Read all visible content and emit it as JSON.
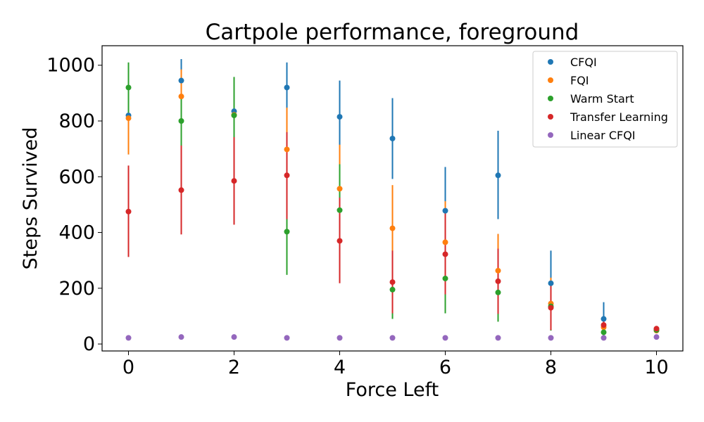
{
  "chart_data": {
    "type": "scatter",
    "title": "Cartpole performance, foreground",
    "xlabel": "Force Left",
    "ylabel": "Steps Survived",
    "xlim": [
      -0.5,
      10.5
    ],
    "ylim": [
      -25,
      1070
    ],
    "xticks": [
      0,
      2,
      4,
      6,
      8,
      10
    ],
    "yticks": [
      0,
      200,
      400,
      600,
      800,
      1000
    ],
    "grid": false,
    "legend_position": "top-right",
    "x": [
      0,
      1,
      2,
      3,
      4,
      5,
      6,
      7,
      8,
      9,
      10
    ],
    "series": [
      {
        "name": "CFQI",
        "color": "#1f77b4",
        "values": [
          820,
          945,
          835,
          920,
          815,
          737,
          478,
          605,
          218,
          90,
          50
        ],
        "err_low": [
          680,
          865,
          735,
          830,
          690,
          592,
          320,
          448,
          105,
          32,
          40
        ],
        "err_high": [
          955,
          1022,
          935,
          1010,
          945,
          882,
          635,
          765,
          335,
          150,
          60
        ]
      },
      {
        "name": "FQI",
        "color": "#ff7f0e",
        "values": [
          810,
          888,
          822,
          698,
          557,
          415,
          365,
          263,
          145,
          60,
          48
        ],
        "err_low": [
          680,
          790,
          735,
          548,
          400,
          262,
          218,
          130,
          52,
          30,
          40
        ],
        "err_high": [
          938,
          985,
          905,
          848,
          715,
          570,
          512,
          395,
          238,
          90,
          56
        ]
      },
      {
        "name": "Warm Start",
        "color": "#2ca02c",
        "values": [
          920,
          800,
          820,
          403,
          480,
          195,
          235,
          185,
          135,
          42,
          50
        ],
        "err_low": [
          830,
          710,
          740,
          248,
          320,
          90,
          110,
          80,
          48,
          30,
          42
        ],
        "err_high": [
          1010,
          888,
          958,
          558,
          645,
          300,
          362,
          292,
          222,
          55,
          58
        ]
      },
      {
        "name": "Transfer Learning",
        "color": "#d62728",
        "values": [
          475,
          552,
          585,
          605,
          370,
          222,
          322,
          225,
          130,
          68,
          55
        ],
        "err_low": [
          312,
          393,
          428,
          448,
          218,
          110,
          178,
          108,
          50,
          45,
          46
        ],
        "err_high": [
          640,
          712,
          742,
          760,
          525,
          335,
          468,
          342,
          212,
          92,
          62
        ]
      },
      {
        "name": "Linear CFQI",
        "color": "#9467bd",
        "values": [
          22,
          25,
          25,
          22,
          22,
          22,
          22,
          22,
          22,
          22,
          25
        ],
        "err_low": [
          22,
          25,
          25,
          22,
          22,
          22,
          22,
          22,
          22,
          22,
          25
        ],
        "err_high": [
          22,
          25,
          25,
          22,
          22,
          22,
          22,
          22,
          22,
          22,
          25
        ]
      }
    ]
  }
}
